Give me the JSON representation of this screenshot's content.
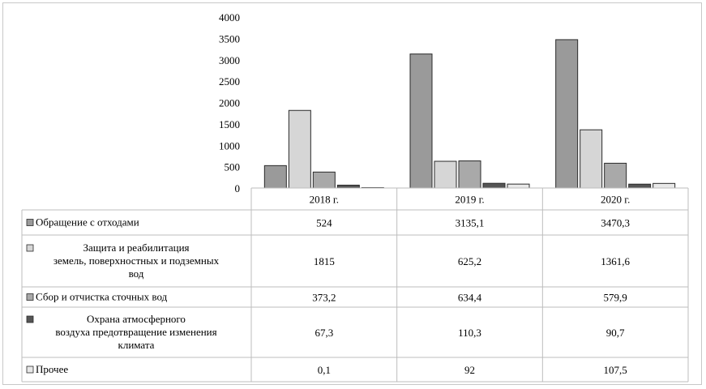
{
  "chart_data": {
    "type": "bar",
    "categories": [
      "2018 г.",
      "2019 г.",
      "2020 г."
    ],
    "ylim": [
      0,
      4000
    ],
    "yticks": [
      "0",
      "500",
      "1000",
      "1500",
      "2000",
      "2500",
      "3000",
      "3500",
      "4000"
    ],
    "ytick_values": [
      0,
      500,
      1000,
      1500,
      2000,
      2500,
      3000,
      3500,
      4000
    ],
    "grid": false,
    "legend": "data-table",
    "series": [
      {
        "name": "Обращение с отходами",
        "name_lines": [
          "Обращение с отходами"
        ],
        "color": "#9a9a9a",
        "values": [
          524,
          3135.1,
          3470.3
        ],
        "labels": [
          "524",
          "3135,1",
          "3470,3"
        ]
      },
      {
        "name": "Защита и реабилитация земель, поверхностных и подземных вод",
        "name_lines": [
          "Защита и реабилитация",
          "земель, поверхностных и подземных",
          "вод"
        ],
        "color": "#d6d6d6",
        "values": [
          1815,
          625.2,
          1361.6
        ],
        "labels": [
          "1815",
          "625,2",
          "1361,6"
        ]
      },
      {
        "name": "Сбор и отчистка сточных вод",
        "name_lines": [
          "Сбор и отчистка сточных вод"
        ],
        "color": "#a9a9a9",
        "values": [
          373.2,
          634.4,
          579.9
        ],
        "labels": [
          "373,2",
          "634,4",
          "579,9"
        ]
      },
      {
        "name": "Охрана атмосферного воздуха предотвращение изменения климата",
        "name_lines": [
          "Охрана атмосферного",
          "воздуха предотвращение изменения",
          "климата"
        ],
        "color": "#555555",
        "values": [
          67.3,
          110.3,
          90.7
        ],
        "labels": [
          "67,3",
          "110,3",
          "90,7"
        ]
      },
      {
        "name": "Прочее",
        "name_lines": [
          "Прочее"
        ],
        "color": "#e8e8e8",
        "values": [
          0.1,
          92,
          107.5
        ],
        "labels": [
          "0,1",
          "92",
          "107,5"
        ]
      }
    ]
  }
}
